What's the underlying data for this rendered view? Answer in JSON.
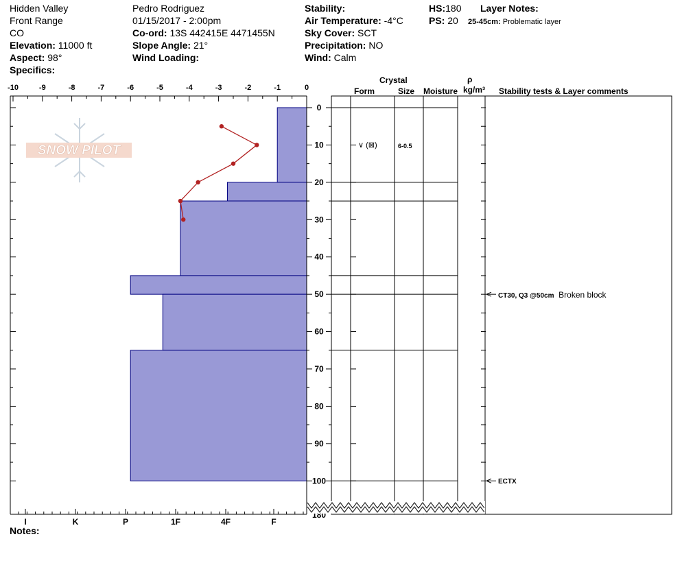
{
  "header": {
    "location": "Hidden Valley",
    "range": "Front Range",
    "state": "CO",
    "elevation_label": "Elevation:",
    "elevation": "11000 ft",
    "aspect_label": "Aspect:",
    "aspect": "98°",
    "specifics_label": "Specifics:",
    "observer": "Pedro Rodriguez",
    "datetime": "01/15/2017 - 2:00pm",
    "coord_label": "Co-ord:",
    "coord": "13S 442415E 4471455N",
    "slope_label": "Slope Angle:",
    "slope": "21°",
    "wind_loading_label": "Wind Loading:",
    "stability_label": "Stability:",
    "air_temp_label": "Air Temperature:",
    "air_temp": "-4°C",
    "sky_label": "Sky Cover:",
    "sky": "SCT",
    "precip_label": "Precipitation:",
    "precip": "NO",
    "wind_label": "Wind:",
    "wind": "Calm",
    "hs_label": "HS:",
    "hs": "180",
    "ps_label": "PS:",
    "ps": "20",
    "layer_notes_label": "Layer Notes:",
    "layer_note_range": "25-45cm:",
    "layer_note_text": "Problematic layer"
  },
  "columns": {
    "crystal": "Crystal",
    "form": "Form",
    "size": "Size",
    "moisture": "Moisture",
    "rho": "ρ",
    "density_unit": "kg/m³",
    "stability": "Stability tests & Layer comments"
  },
  "notes_label": "Notes:",
  "logo_text": "SNOW PILOT",
  "chart_data": {
    "type": "bar",
    "temperature_axis": {
      "ticks": [
        -10,
        -9,
        -8,
        -7,
        -6,
        -5,
        -4,
        -3,
        -2,
        -1,
        0
      ],
      "range": [
        -10,
        0
      ]
    },
    "depth_axis": {
      "ticks": [
        0,
        10,
        20,
        30,
        40,
        50,
        60,
        70,
        80,
        90,
        100
      ],
      "range": [
        0,
        100
      ],
      "bottom_label": "180"
    },
    "hardness_axis": {
      "labels": [
        "I",
        "K",
        "P",
        "1F",
        "4F",
        "F"
      ]
    },
    "hardness_profile": [
      {
        "top": 0,
        "bottom": 20,
        "temp_extent": -1
      },
      {
        "top": 20,
        "bottom": 25,
        "temp_extent": -2.7
      },
      {
        "top": 25,
        "bottom": 45,
        "temp_extent": -4.3
      },
      {
        "top": 45,
        "bottom": 50,
        "temp_extent": -6
      },
      {
        "top": 50,
        "bottom": 65,
        "temp_extent": -4.9
      },
      {
        "top": 65,
        "bottom": 100,
        "temp_extent": -6
      }
    ],
    "temperature_profile": [
      {
        "depth": 5,
        "temp": -2.9
      },
      {
        "depth": 10,
        "temp": -1.7
      },
      {
        "depth": 15,
        "temp": -2.5
      },
      {
        "depth": 20,
        "temp": -3.7
      },
      {
        "depth": 25,
        "temp": -4.3
      },
      {
        "depth": 30,
        "temp": -4.2
      }
    ],
    "layer_boundaries": [
      0,
      20,
      25,
      45,
      50,
      65,
      100
    ],
    "crystal": {
      "depth": 10,
      "form": "∨ (⊠)",
      "size": "6-0.5"
    },
    "stability_tests": [
      {
        "depth": 50,
        "label": "CT30, Q3 @50cm",
        "comment": "Broken block"
      },
      {
        "depth": 100,
        "label": "ECTX",
        "comment": ""
      }
    ],
    "colors": {
      "bars": "#9999D6",
      "bar_edge": "#000080",
      "temp_line": "#B22222"
    }
  }
}
